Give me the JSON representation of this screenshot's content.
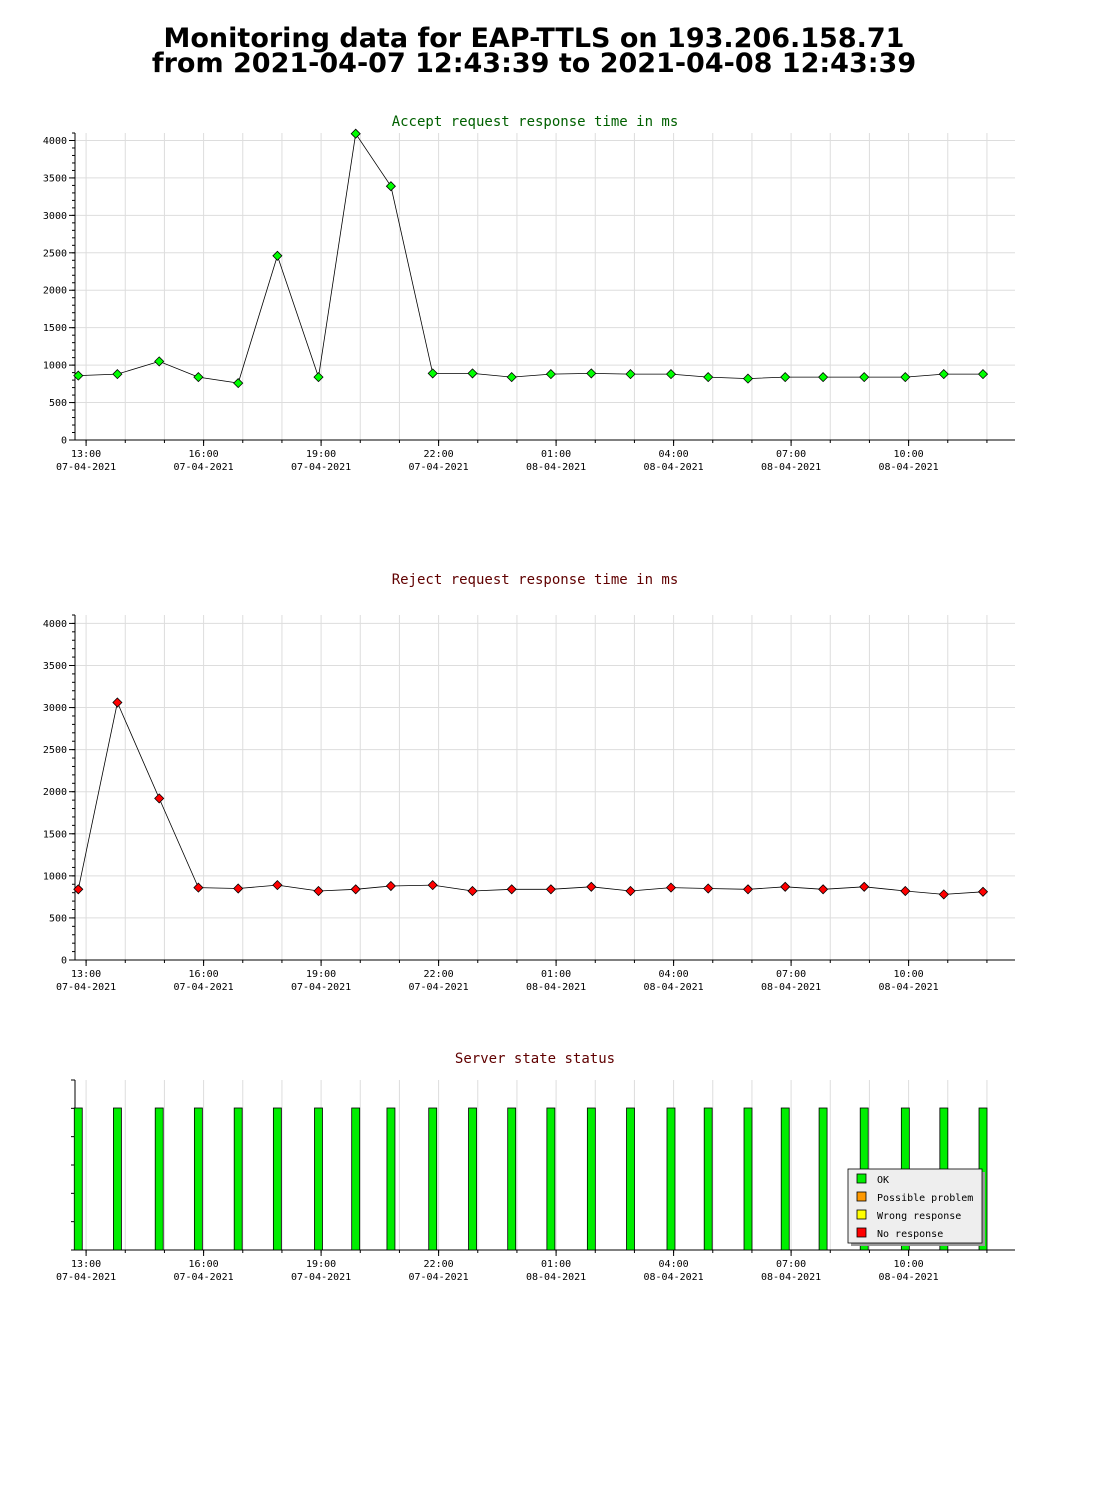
{
  "page": {
    "title_line1": "Monitoring data for EAP-TTLS on 193.206.158.71",
    "title_line2": "from 2021-04-07 12:43:39 to 2021-04-08 12:43:39"
  },
  "colors": {
    "accept_title": "#006000",
    "reject_title": "#600000",
    "status_title": "#600000",
    "accept_marker": "#00ff00",
    "reject_marker": "#ff0000",
    "ok": "#00ee00",
    "possible_problem": "#ff9900",
    "wrong_response": "#ffff00",
    "no_response": "#ff0000",
    "grid": "#dddddd"
  },
  "chart_data": [
    {
      "type": "line",
      "title": "Accept request response time in ms",
      "x_axis": {
        "type": "time",
        "start": "2021-04-07 12:43",
        "end": "2021-04-08 12:43"
      },
      "ylim": [
        0,
        4100
      ],
      "yticks": [
        "0",
        "500",
        "1000",
        "1500",
        "2000",
        "2500",
        "3000",
        "3500",
        "4000"
      ],
      "xticks": [
        {
          "time": "2021-04-07 13:00",
          "l1": "13:00",
          "l2": "07-04-2021"
        },
        {
          "time": "2021-04-07 16:00",
          "l1": "16:00",
          "l2": "07-04-2021"
        },
        {
          "time": "2021-04-07 19:00",
          "l1": "19:00",
          "l2": "07-04-2021"
        },
        {
          "time": "2021-04-07 22:00",
          "l1": "22:00",
          "l2": "07-04-2021"
        },
        {
          "time": "2021-04-08 01:00",
          "l1": "01:00",
          "l2": "08-04-2021"
        },
        {
          "time": "2021-04-08 04:00",
          "l1": "04:00",
          "l2": "08-04-2021"
        },
        {
          "time": "2021-04-08 07:00",
          "l1": "07:00",
          "l2": "08-04-2021"
        },
        {
          "time": "2021-04-08 10:00",
          "l1": "10:00",
          "l2": "08-04-2021"
        }
      ],
      "grid": true,
      "points": [
        {
          "x": "2021-04-07 12:48",
          "y": 860
        },
        {
          "x": "2021-04-07 13:48",
          "y": 880
        },
        {
          "x": "2021-04-07 14:52",
          "y": 1050
        },
        {
          "x": "2021-04-07 15:52",
          "y": 840
        },
        {
          "x": "2021-04-07 16:53",
          "y": 760
        },
        {
          "x": "2021-04-07 17:53",
          "y": 2460
        },
        {
          "x": "2021-04-07 18:56",
          "y": 840
        },
        {
          "x": "2021-04-07 19:53",
          "y": 4090
        },
        {
          "x": "2021-04-07 20:47",
          "y": 3390
        },
        {
          "x": "2021-04-07 21:51",
          "y": 890
        },
        {
          "x": "2021-04-07 22:52",
          "y": 890
        },
        {
          "x": "2021-04-07 23:52",
          "y": 840
        },
        {
          "x": "2021-04-08 00:52",
          "y": 880
        },
        {
          "x": "2021-04-08 01:54",
          "y": 890
        },
        {
          "x": "2021-04-08 02:54",
          "y": 880
        },
        {
          "x": "2021-04-08 03:56",
          "y": 880
        },
        {
          "x": "2021-04-08 04:53",
          "y": 840
        },
        {
          "x": "2021-04-08 05:54",
          "y": 820
        },
        {
          "x": "2021-04-08 06:51",
          "y": 840
        },
        {
          "x": "2021-04-08 07:49",
          "y": 840
        },
        {
          "x": "2021-04-08 08:52",
          "y": 840
        },
        {
          "x": "2021-04-08 09:55",
          "y": 840
        },
        {
          "x": "2021-04-08 10:54",
          "y": 880
        },
        {
          "x": "2021-04-08 11:54",
          "y": 880
        }
      ]
    },
    {
      "type": "line",
      "title": "Reject request response time in ms",
      "x_axis": {
        "type": "time",
        "start": "2021-04-07 12:43",
        "end": "2021-04-08 12:43"
      },
      "ylim": [
        0,
        4100
      ],
      "yticks": [
        "0",
        "500",
        "1000",
        "1500",
        "2000",
        "2500",
        "3000",
        "3500",
        "4000"
      ],
      "xticks": [
        {
          "time": "2021-04-07 13:00",
          "l1": "13:00",
          "l2": "07-04-2021"
        },
        {
          "time": "2021-04-07 16:00",
          "l1": "16:00",
          "l2": "07-04-2021"
        },
        {
          "time": "2021-04-07 19:00",
          "l1": "19:00",
          "l2": "07-04-2021"
        },
        {
          "time": "2021-04-07 22:00",
          "l1": "22:00",
          "l2": "07-04-2021"
        },
        {
          "time": "2021-04-08 01:00",
          "l1": "01:00",
          "l2": "08-04-2021"
        },
        {
          "time": "2021-04-08 04:00",
          "l1": "04:00",
          "l2": "08-04-2021"
        },
        {
          "time": "2021-04-08 07:00",
          "l1": "07:00",
          "l2": "08-04-2021"
        },
        {
          "time": "2021-04-08 10:00",
          "l1": "10:00",
          "l2": "08-04-2021"
        }
      ],
      "grid": true,
      "points": [
        {
          "x": "2021-04-07 12:48",
          "y": 840
        },
        {
          "x": "2021-04-07 13:48",
          "y": 3060
        },
        {
          "x": "2021-04-07 14:52",
          "y": 1920
        },
        {
          "x": "2021-04-07 15:52",
          "y": 860
        },
        {
          "x": "2021-04-07 16:53",
          "y": 850
        },
        {
          "x": "2021-04-07 17:53",
          "y": 890
        },
        {
          "x": "2021-04-07 18:56",
          "y": 820
        },
        {
          "x": "2021-04-07 19:53",
          "y": 840
        },
        {
          "x": "2021-04-07 20:47",
          "y": 880
        },
        {
          "x": "2021-04-07 21:51",
          "y": 890
        },
        {
          "x": "2021-04-07 22:52",
          "y": 820
        },
        {
          "x": "2021-04-07 23:52",
          "y": 840
        },
        {
          "x": "2021-04-08 00:52",
          "y": 840
        },
        {
          "x": "2021-04-08 01:54",
          "y": 870
        },
        {
          "x": "2021-04-08 02:54",
          "y": 820
        },
        {
          "x": "2021-04-08 03:56",
          "y": 860
        },
        {
          "x": "2021-04-08 04:53",
          "y": 850
        },
        {
          "x": "2021-04-08 05:54",
          "y": 840
        },
        {
          "x": "2021-04-08 06:51",
          "y": 870
        },
        {
          "x": "2021-04-08 07:49",
          "y": 840
        },
        {
          "x": "2021-04-08 08:52",
          "y": 870
        },
        {
          "x": "2021-04-08 09:55",
          "y": 820
        },
        {
          "x": "2021-04-08 10:54",
          "y": 780
        },
        {
          "x": "2021-04-08 11:54",
          "y": 810
        }
      ]
    },
    {
      "type": "bar",
      "title": "Server state status",
      "x_axis": {
        "type": "time",
        "start": "2021-04-07 12:43",
        "end": "2021-04-08 12:43"
      },
      "xticks": [
        {
          "time": "2021-04-07 13:00",
          "l1": "13:00",
          "l2": "07-04-2021"
        },
        {
          "time": "2021-04-07 16:00",
          "l1": "16:00",
          "l2": "07-04-2021"
        },
        {
          "time": "2021-04-07 19:00",
          "l1": "19:00",
          "l2": "07-04-2021"
        },
        {
          "time": "2021-04-07 22:00",
          "l1": "22:00",
          "l2": "07-04-2021"
        },
        {
          "time": "2021-04-08 01:00",
          "l1": "01:00",
          "l2": "08-04-2021"
        },
        {
          "time": "2021-04-08 04:00",
          "l1": "04:00",
          "l2": "08-04-2021"
        },
        {
          "time": "2021-04-08 07:00",
          "l1": "07:00",
          "l2": "08-04-2021"
        },
        {
          "time": "2021-04-08 10:00",
          "l1": "10:00",
          "l2": "08-04-2021"
        }
      ],
      "legend": {
        "position": "bottom-right",
        "entries": [
          {
            "label": "OK",
            "color": "#00ee00"
          },
          {
            "label": "Possible problem",
            "color": "#ff9900"
          },
          {
            "label": "Wrong response",
            "color": "#ffff00"
          },
          {
            "label": "No response",
            "color": "#ff0000"
          }
        ]
      },
      "bars": [
        {
          "x": "2021-04-07 12:48",
          "state": "OK"
        },
        {
          "x": "2021-04-07 13:48",
          "state": "OK"
        },
        {
          "x": "2021-04-07 14:52",
          "state": "OK"
        },
        {
          "x": "2021-04-07 15:52",
          "state": "OK"
        },
        {
          "x": "2021-04-07 16:53",
          "state": "OK"
        },
        {
          "x": "2021-04-07 17:53",
          "state": "OK"
        },
        {
          "x": "2021-04-07 18:56",
          "state": "OK"
        },
        {
          "x": "2021-04-07 19:53",
          "state": "OK"
        },
        {
          "x": "2021-04-07 20:47",
          "state": "OK"
        },
        {
          "x": "2021-04-07 21:51",
          "state": "OK"
        },
        {
          "x": "2021-04-07 22:52",
          "state": "OK"
        },
        {
          "x": "2021-04-07 23:52",
          "state": "OK"
        },
        {
          "x": "2021-04-08 00:52",
          "state": "OK"
        },
        {
          "x": "2021-04-08 01:54",
          "state": "OK"
        },
        {
          "x": "2021-04-08 02:54",
          "state": "OK"
        },
        {
          "x": "2021-04-08 03:56",
          "state": "OK"
        },
        {
          "x": "2021-04-08 04:53",
          "state": "OK"
        },
        {
          "x": "2021-04-08 05:54",
          "state": "OK"
        },
        {
          "x": "2021-04-08 06:51",
          "state": "OK"
        },
        {
          "x": "2021-04-08 07:49",
          "state": "OK"
        },
        {
          "x": "2021-04-08 08:52",
          "state": "OK"
        },
        {
          "x": "2021-04-08 09:55",
          "state": "OK"
        },
        {
          "x": "2021-04-08 10:54",
          "state": "OK"
        },
        {
          "x": "2021-04-08 11:54",
          "state": "OK"
        }
      ]
    }
  ]
}
